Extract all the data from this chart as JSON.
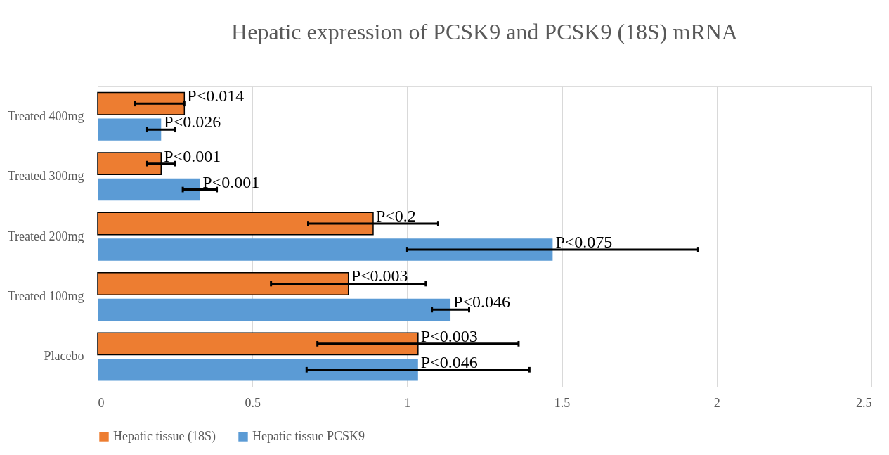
{
  "chart_data": {
    "type": "bar",
    "orientation": "horizontal",
    "title": "Hepatic expression of PCSK9 and PCSK9 (18S) mRNA",
    "categories": [
      "Treated 400mg",
      "Treated 300mg",
      "Treated 200mg",
      "Treated 100mg",
      "Placebo"
    ],
    "series": [
      {
        "name": "Hepatic tissue (18S)",
        "color": "#ed7d31",
        "values": [
          0.28,
          0.205,
          0.89,
          0.81,
          1.035
        ],
        "errors": [
          [
            0.12,
            0.28
          ],
          0.045,
          0.21,
          0.25,
          0.325
        ],
        "value_labels": [
          "P<0.014",
          "P<0.001",
          "P<0.2",
          "P<0.003",
          "P<0.003"
        ]
      },
      {
        "name": "Hepatic tissue PCSK9",
        "color": "#5b9bd5",
        "values": [
          0.205,
          0.33,
          1.47,
          1.14,
          1.035
        ],
        "errors": [
          0.045,
          0.055,
          0.47,
          0.06,
          0.36
        ],
        "value_labels": [
          "P<0.026",
          "P<0.001",
          "P<0.075",
          "P<0.046",
          "P<0.046"
        ]
      }
    ],
    "xlim": [
      0,
      2.5
    ],
    "xticks": [
      0,
      0.5,
      1,
      1.5,
      2,
      2.5
    ],
    "grid": "x",
    "legend": "bottom"
  }
}
